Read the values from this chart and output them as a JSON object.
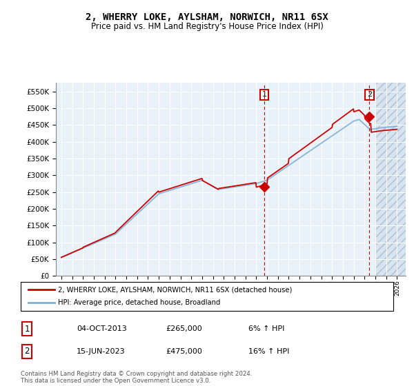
{
  "title": "2, WHERRY LOKE, AYLSHAM, NORWICH, NR11 6SX",
  "subtitle": "Price paid vs. HM Land Registry's House Price Index (HPI)",
  "ylim": [
    0,
    575000
  ],
  "yticks": [
    0,
    50000,
    100000,
    150000,
    200000,
    250000,
    300000,
    350000,
    400000,
    450000,
    500000,
    550000
  ],
  "ytick_labels": [
    "£0",
    "£50K",
    "£100K",
    "£150K",
    "£200K",
    "£250K",
    "£300K",
    "£350K",
    "£400K",
    "£450K",
    "£500K",
    "£550K"
  ],
  "x_start_year": 1995,
  "x_end_year": 2026,
  "hpi_color": "#7bafd4",
  "price_color": "#cc0000",
  "sale1_year": 2013.75,
  "sale1_price": 265000,
  "sale2_year": 2023.45,
  "sale2_price": 475000,
  "sale1_label": "1",
  "sale2_label": "2",
  "legend_line1": "2, WHERRY LOKE, AYLSHAM, NORWICH, NR11 6SX (detached house)",
  "legend_line2": "HPI: Average price, detached house, Broadland",
  "table_row1": [
    "1",
    "04-OCT-2013",
    "£265,000",
    "6% ↑ HPI"
  ],
  "table_row2": [
    "2",
    "15-JUN-2023",
    "£475,000",
    "16% ↑ HPI"
  ],
  "footer": "Contains HM Land Registry data © Crown copyright and database right 2024.\nThis data is licensed under the Open Government Licence v3.0.",
  "plot_bg_color": "#e8f0f8",
  "hatch_color": "#b0c4d8"
}
